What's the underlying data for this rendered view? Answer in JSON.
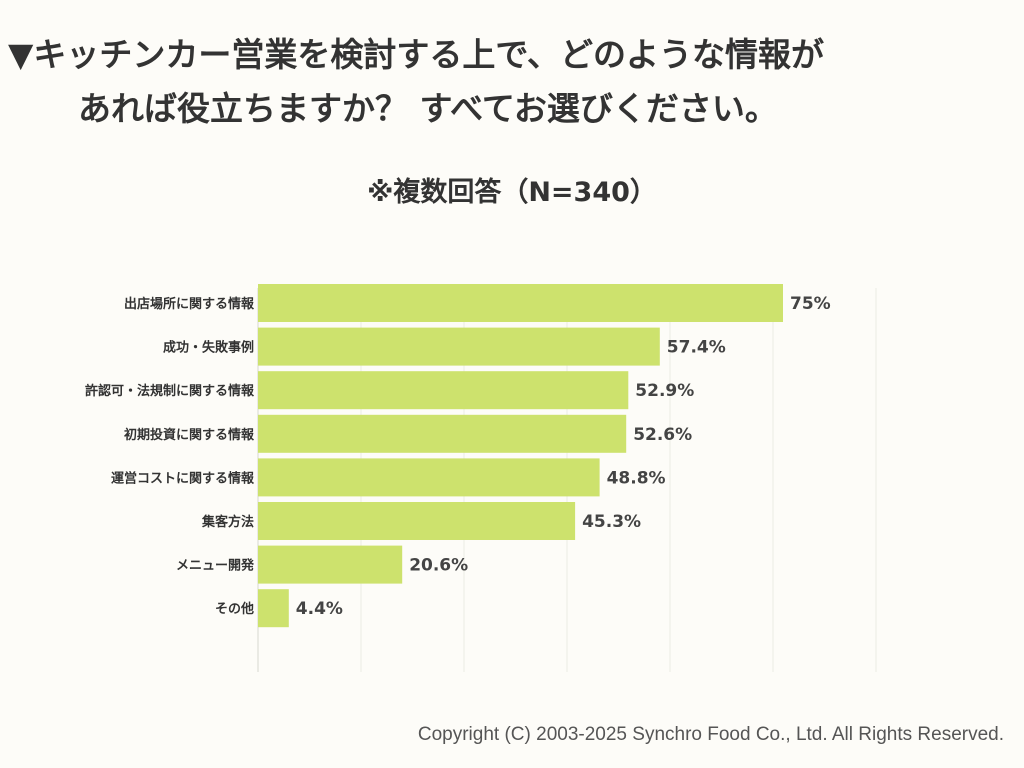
{
  "title_line1": "▼キッチンカー営業を検討する上で、どのような情報が",
  "title_line2": "あれば役立ちますか？ すべてお選びください。",
  "subtitle": "※複数回答（N=340）",
  "copyright": "Copyright (C) 2003-2025  Synchro Food Co., Ltd. All Rights Reserved.",
  "chart_data": {
    "type": "bar",
    "orientation": "horizontal",
    "categories": [
      "出店場所に関する情報",
      "成功・失敗事例",
      "許認可・法規制に関する情報",
      "初期投資に関する情報",
      "運営コストに関する情報",
      "集客方法",
      "メニュー開発",
      "その他"
    ],
    "values": [
      75,
      57.4,
      52.9,
      52.6,
      48.8,
      45.3,
      20.6,
      4.4
    ],
    "data_labels": [
      "75%",
      "57.4%",
      "52.9%",
      "52.6%",
      "48.8%",
      "45.3%",
      "20.6%",
      "4.4%"
    ],
    "unit": "%",
    "grid": true,
    "bar_color": "#cde26d"
  }
}
